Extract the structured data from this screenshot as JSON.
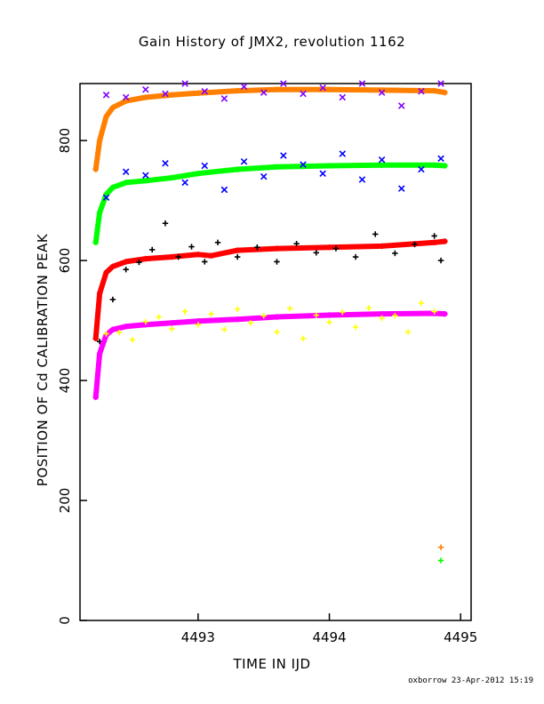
{
  "chart_data": {
    "type": "scatter",
    "title": "Gain History of JMX2, revolution 1162",
    "xlabel": "TIME IN IJD",
    "ylabel": "POSITION OF Cd CALIBRATION PEAK",
    "xlim": [
      4492.1,
      4495.08
    ],
    "ylim": [
      0,
      895
    ],
    "x_ticks": [
      4493,
      4494,
      4495
    ],
    "y_ticks": [
      0,
      200,
      400,
      600,
      800
    ],
    "grid": false,
    "legend": "none",
    "series": [
      {
        "color": "#ff8000",
        "marker": "fit-curve",
        "x": [
          4492.22,
          4492.25,
          4492.3,
          4492.35,
          4492.45,
          4492.6,
          4492.8,
          4493.0,
          4493.3,
          4493.6,
          4494.0,
          4494.4,
          4494.8,
          4494.88
        ],
        "y": [
          752,
          800,
          840,
          855,
          866,
          872,
          876,
          879,
          883,
          885,
          885,
          884,
          883,
          880
        ]
      },
      {
        "color": "#8000ff",
        "marker": "x",
        "x": [
          4492.3,
          4492.45,
          4492.6,
          4492.75,
          4492.9,
          4493.05,
          4493.2,
          4493.35,
          4493.5,
          4493.65,
          4493.8,
          4493.95,
          4494.1,
          4494.25,
          4494.4,
          4494.55,
          4494.7,
          4494.85
        ],
        "y": [
          876,
          872,
          885,
          878,
          895,
          882,
          870,
          890,
          880,
          895,
          878,
          888,
          872,
          895,
          880,
          858,
          882,
          895
        ]
      },
      {
        "color": "#00ff00",
        "marker": "fit-curve",
        "x": [
          4492.22,
          4492.25,
          4492.3,
          4492.35,
          4492.45,
          4492.6,
          4492.8,
          4493.0,
          4493.3,
          4493.6,
          4494.0,
          4494.4,
          4494.8,
          4494.88
        ],
        "y": [
          630,
          680,
          710,
          722,
          730,
          733,
          738,
          745,
          752,
          756,
          758,
          759,
          759,
          758
        ]
      },
      {
        "color": "#0000ff",
        "marker": "x",
        "x": [
          4492.3,
          4492.45,
          4492.6,
          4492.75,
          4492.9,
          4493.05,
          4493.2,
          4493.35,
          4493.5,
          4493.65,
          4493.8,
          4493.95,
          4494.1,
          4494.25,
          4494.4,
          4494.55,
          4494.7,
          4494.85
        ],
        "y": [
          705,
          748,
          742,
          762,
          730,
          758,
          718,
          765,
          740,
          775,
          760,
          745,
          778,
          735,
          768,
          720,
          752,
          770
        ]
      },
      {
        "color": "#ff0000",
        "marker": "fit-curve",
        "x": [
          4492.22,
          4492.25,
          4492.3,
          4492.35,
          4492.45,
          4492.6,
          4492.8,
          4493.0,
          4493.1,
          4493.3,
          4493.6,
          4494.0,
          4494.4,
          4494.8,
          4494.88
        ],
        "y": [
          470,
          545,
          580,
          590,
          598,
          603,
          606,
          610,
          608,
          617,
          620,
          622,
          624,
          630,
          632
        ]
      },
      {
        "color": "#000000",
        "marker": "+",
        "x": [
          4492.25,
          4492.35,
          4492.45,
          4492.55,
          4492.65,
          4492.75,
          4492.85,
          4492.95,
          4493.05,
          4493.15,
          4493.3,
          4493.45,
          4493.6,
          4493.75,
          4493.9,
          4494.05,
          4494.2,
          4494.35,
          4494.5,
          4494.65,
          4494.8,
          4494.85
        ],
        "y": [
          465,
          535,
          585,
          597,
          618,
          662,
          606,
          623,
          598,
          630,
          606,
          622,
          598,
          628,
          613,
          620,
          606,
          644,
          612,
          627,
          641,
          600
        ]
      },
      {
        "color": "#ff00ff",
        "marker": "fit-curve",
        "x": [
          4492.22,
          4492.25,
          4492.3,
          4492.35,
          4492.45,
          4492.6,
          4492.8,
          4493.0,
          4493.3,
          4493.6,
          4494.0,
          4494.4,
          4494.8,
          4494.88
        ],
        "y": [
          372,
          445,
          476,
          485,
          490,
          493,
          496,
          499,
          502,
          506,
          509,
          511,
          512,
          511
        ]
      },
      {
        "color": "#ffff00",
        "marker": "+",
        "x": [
          4492.3,
          4492.4,
          4492.5,
          4492.6,
          4492.7,
          4492.8,
          4492.9,
          4493.0,
          4493.1,
          4493.2,
          4493.3,
          4493.4,
          4493.5,
          4493.6,
          4493.7,
          4493.8,
          4493.9,
          4494.0,
          4494.1,
          4494.2,
          4494.3,
          4494.4,
          4494.5,
          4494.6,
          4494.7,
          4494.8
        ],
        "y": [
          478,
          480,
          468,
          498,
          506,
          486,
          515,
          493,
          511,
          485,
          519,
          496,
          508,
          481,
          520,
          470,
          509,
          497,
          514,
          489,
          521,
          504,
          508,
          481,
          529,
          515
        ]
      },
      {
        "color": "#ff8000",
        "marker": "+",
        "x": [
          4494.85
        ],
        "y": [
          122
        ]
      },
      {
        "color": "#00ff00",
        "marker": "+",
        "x": [
          4494.85
        ],
        "y": [
          100
        ]
      }
    ]
  },
  "footer": {
    "credit": "oxborrow 23-Apr-2012 15:19"
  }
}
